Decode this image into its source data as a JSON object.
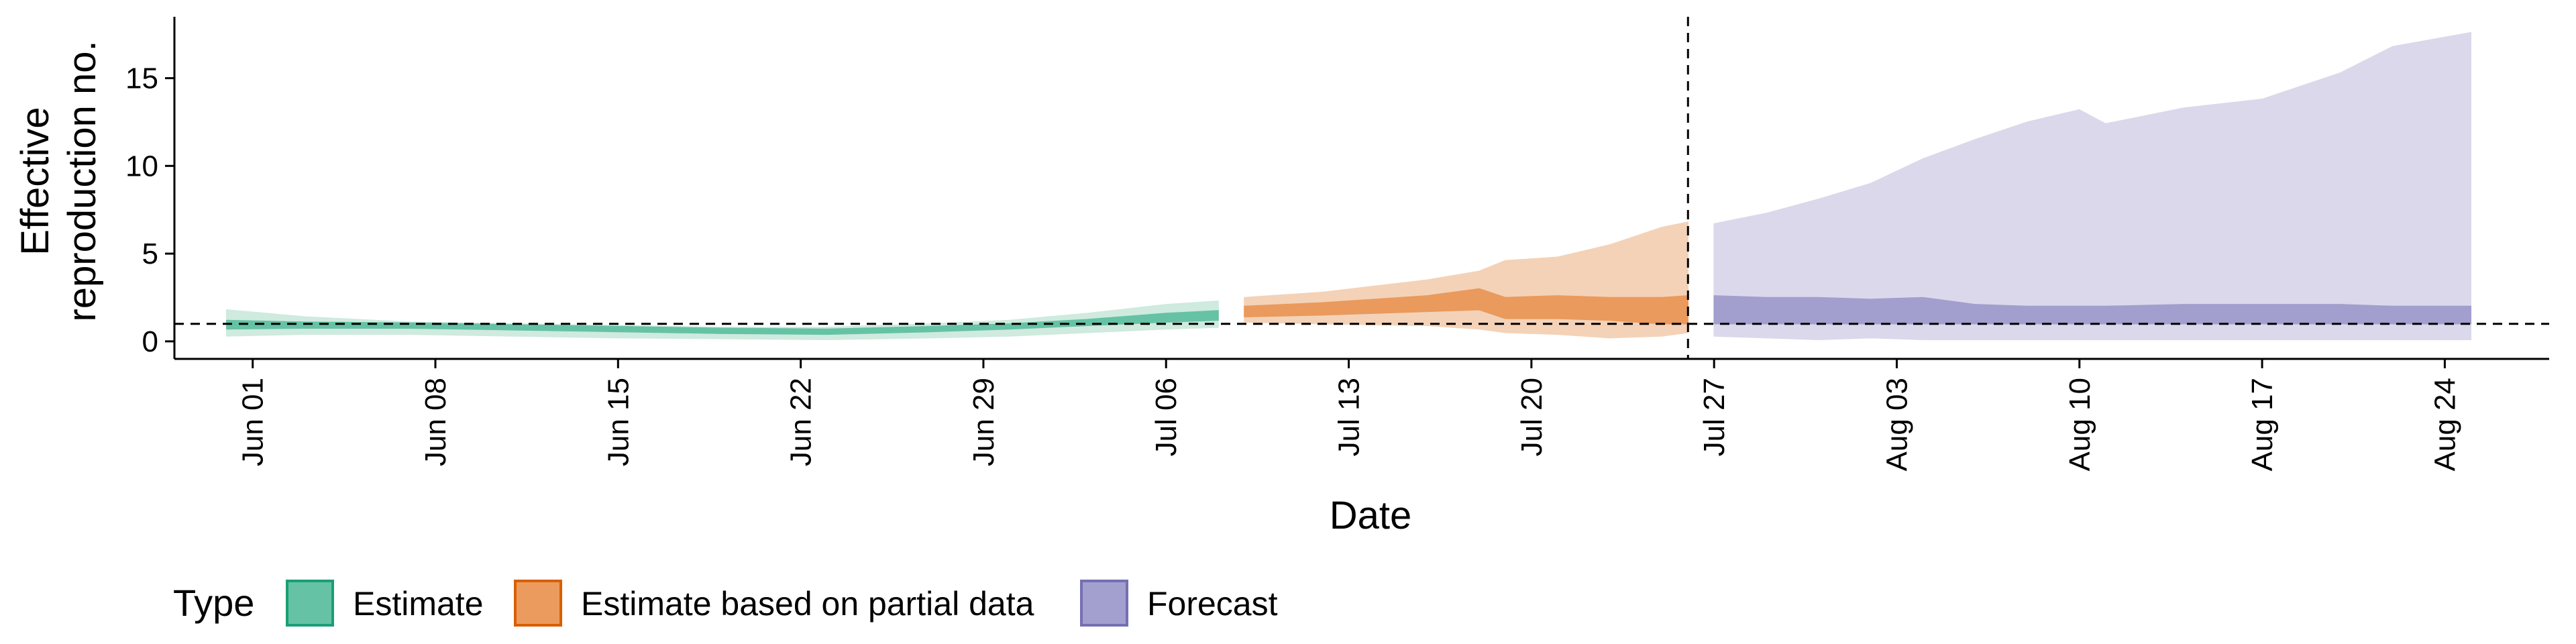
{
  "chart_data": {
    "type": "area",
    "title": "",
    "xlabel": "Date",
    "ylabel": "Effective\nreproduction no.",
    "xlim": [
      "2021-05-29",
      "2021-08-28"
    ],
    "ylim": [
      -1,
      18.5
    ],
    "yticks": [
      0,
      5,
      10,
      15
    ],
    "xticks": [
      "2021-06-01",
      "2021-06-08",
      "2021-06-15",
      "2021-06-22",
      "2021-06-29",
      "2021-07-06",
      "2021-07-13",
      "2021-07-20",
      "2021-07-27",
      "2021-08-03",
      "2021-08-10",
      "2021-08-17",
      "2021-08-24"
    ],
    "xtick_labels": [
      "Jun 01",
      "Jun 08",
      "Jun 15",
      "Jun 22",
      "Jun 29",
      "Jul 06",
      "Jul 13",
      "Jul 20",
      "Jul 27",
      "Aug 03",
      "Aug 10",
      "Aug 17",
      "Aug 24"
    ],
    "reference_lines": {
      "horizontal_y": 1,
      "vertical_x": "2021-07-26",
      "style": "dashed"
    },
    "grid": false,
    "legend": {
      "title": "Type",
      "position": "bottom",
      "entries": [
        {
          "label": "Estimate",
          "fill": "#66c2a5",
          "border": "#1b9e77"
        },
        {
          "label": "Estimate based on partial data",
          "fill": "#eb9b5e",
          "border": "#d95f02"
        },
        {
          "label": "Forecast",
          "fill": "#a39fcf",
          "border": "#7570b3"
        }
      ]
    },
    "series": [
      {
        "name": "Estimate",
        "color": "#1b9e77",
        "points": [
          {
            "x": "2021-05-31",
            "outer": [
              0.3,
              1.8
            ],
            "inner": [
              0.7,
              1.2
            ]
          },
          {
            "x": "2021-06-03",
            "outer": [
              0.4,
              1.4
            ],
            "inner": [
              0.75,
              1.1
            ]
          },
          {
            "x": "2021-06-07",
            "outer": [
              0.4,
              1.1
            ],
            "inner": [
              0.75,
              1.05
            ]
          },
          {
            "x": "2021-06-11",
            "outer": [
              0.3,
              1.0
            ],
            "inner": [
              0.65,
              0.95
            ]
          },
          {
            "x": "2021-06-15",
            "outer": [
              0.2,
              0.9
            ],
            "inner": [
              0.55,
              0.85
            ]
          },
          {
            "x": "2021-06-19",
            "outer": [
              0.15,
              0.8
            ],
            "inner": [
              0.45,
              0.75
            ]
          },
          {
            "x": "2021-06-23",
            "outer": [
              0.1,
              0.8
            ],
            "inner": [
              0.4,
              0.7
            ]
          },
          {
            "x": "2021-06-27",
            "outer": [
              0.2,
              1.0
            ],
            "inner": [
              0.55,
              0.85
            ]
          },
          {
            "x": "2021-06-30",
            "outer": [
              0.3,
              1.2
            ],
            "inner": [
              0.7,
              1.0
            ]
          },
          {
            "x": "2021-07-03",
            "outer": [
              0.5,
              1.6
            ],
            "inner": [
              0.9,
              1.25
            ]
          },
          {
            "x": "2021-07-06",
            "outer": [
              0.7,
              2.1
            ],
            "inner": [
              1.1,
              1.6
            ]
          },
          {
            "x": "2021-07-08",
            "outer": [
              0.8,
              2.3
            ],
            "inner": [
              1.2,
              1.75
            ]
          }
        ]
      },
      {
        "name": "Estimate based on partial data",
        "color": "#d95f02",
        "points": [
          {
            "x": "2021-07-09",
            "outer": [
              1.1,
              2.5
            ],
            "inner": [
              1.4,
              2.0
            ]
          },
          {
            "x": "2021-07-12",
            "outer": [
              1.0,
              2.8
            ],
            "inner": [
              1.5,
              2.2
            ]
          },
          {
            "x": "2021-07-16",
            "outer": [
              0.9,
              3.5
            ],
            "inner": [
              1.7,
              2.6
            ]
          },
          {
            "x": "2021-07-18",
            "outer": [
              0.7,
              4.0
            ],
            "inner": [
              1.8,
              3.0
            ]
          },
          {
            "x": "2021-07-19",
            "outer": [
              0.5,
              4.6
            ],
            "inner": [
              1.3,
              2.5
            ]
          },
          {
            "x": "2021-07-21",
            "outer": [
              0.4,
              4.8
            ],
            "inner": [
              1.3,
              2.6
            ]
          },
          {
            "x": "2021-07-23",
            "outer": [
              0.2,
              5.5
            ],
            "inner": [
              1.2,
              2.5
            ]
          },
          {
            "x": "2021-07-25",
            "outer": [
              0.3,
              6.5
            ],
            "inner": [
              1.0,
              2.5
            ]
          },
          {
            "x": "2021-07-26",
            "outer": [
              0.5,
              6.8
            ],
            "inner": [
              1.0,
              2.6
            ]
          }
        ]
      },
      {
        "name": "Forecast",
        "color": "#7570b3",
        "points": [
          {
            "x": "2021-07-27",
            "outer": [
              0.3,
              6.7
            ],
            "inner": [
              1.0,
              2.6
            ]
          },
          {
            "x": "2021-07-29",
            "outer": [
              0.2,
              7.3
            ],
            "inner": [
              1.0,
              2.5
            ]
          },
          {
            "x": "2021-07-31",
            "outer": [
              0.1,
              8.1
            ],
            "inner": [
              1.0,
              2.5
            ]
          },
          {
            "x": "2021-08-02",
            "outer": [
              0.2,
              9.0
            ],
            "inner": [
              1.0,
              2.4
            ]
          },
          {
            "x": "2021-08-04",
            "outer": [
              0.1,
              10.4
            ],
            "inner": [
              1.0,
              2.5
            ]
          },
          {
            "x": "2021-08-06",
            "outer": [
              0.1,
              11.5
            ],
            "inner": [
              1.0,
              2.1
            ]
          },
          {
            "x": "2021-08-08",
            "outer": [
              0.1,
              12.5
            ],
            "inner": [
              1.0,
              2.0
            ]
          },
          {
            "x": "2021-08-10",
            "outer": [
              0.1,
              13.2
            ],
            "inner": [
              1.0,
              2.0
            ]
          },
          {
            "x": "2021-08-11",
            "outer": [
              0.1,
              12.4
            ],
            "inner": [
              1.0,
              2.0
            ]
          },
          {
            "x": "2021-08-14",
            "outer": [
              0.1,
              13.3
            ],
            "inner": [
              1.0,
              2.1
            ]
          },
          {
            "x": "2021-08-17",
            "outer": [
              0.1,
              13.8
            ],
            "inner": [
              1.0,
              2.1
            ]
          },
          {
            "x": "2021-08-20",
            "outer": [
              0.1,
              15.3
            ],
            "inner": [
              1.0,
              2.1
            ]
          },
          {
            "x": "2021-08-22",
            "outer": [
              0.1,
              16.8
            ],
            "inner": [
              1.0,
              2.0
            ]
          },
          {
            "x": "2021-08-25",
            "outer": [
              0.1,
              17.6
            ],
            "inner": [
              1.0,
              2.0
            ]
          }
        ]
      }
    ]
  },
  "colors": {
    "estimate_outer": "#cfeade",
    "estimate_inner": "#66c2a5",
    "partial_outer": "#f4d2b7",
    "partial_inner": "#e99a5c",
    "forecast_outer": "#dad8ea",
    "forecast_inner": "#a29ecd"
  }
}
